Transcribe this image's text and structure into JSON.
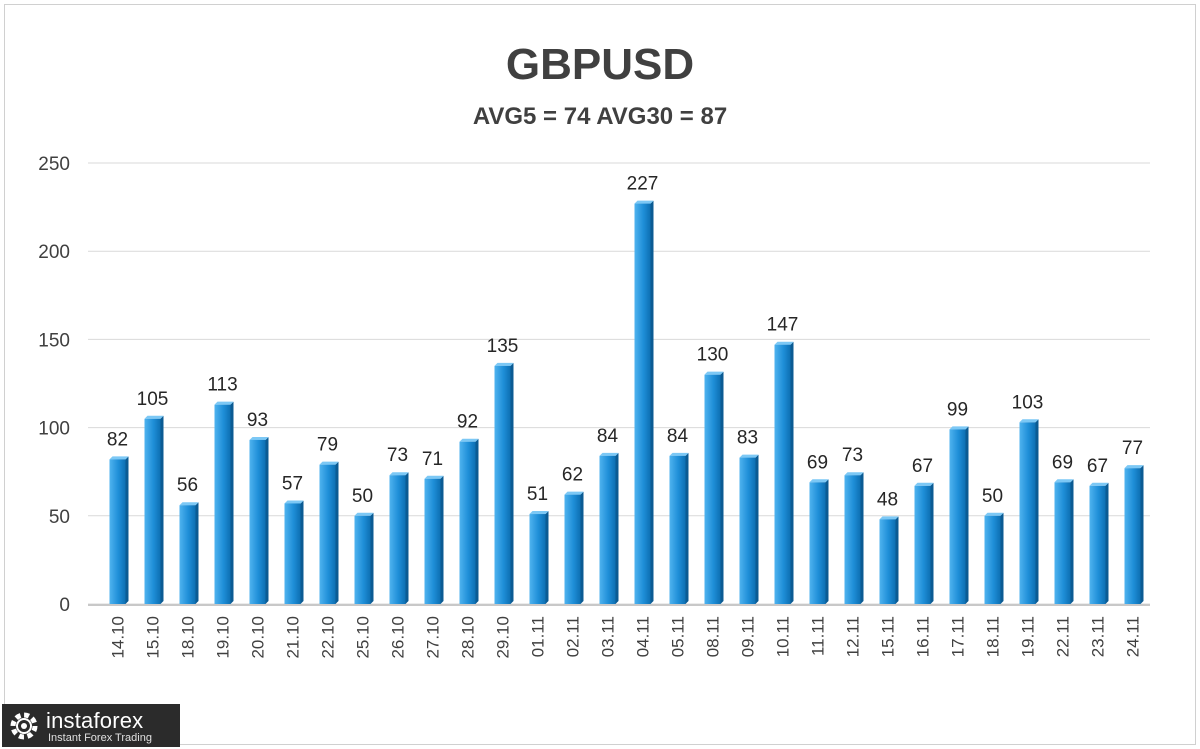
{
  "chart_data": {
    "type": "bar",
    "title": "GBPUSD",
    "subtitle": "AVG5 = 74 AVG30 = 87",
    "categories": [
      "14.10",
      "15.10",
      "18.10",
      "19.10",
      "20.10",
      "21.10",
      "22.10",
      "25.10",
      "26.10",
      "27.10",
      "28.10",
      "29.10",
      "01.11",
      "02.11",
      "03.11",
      "04.11",
      "05.11",
      "08.11",
      "09.11",
      "10.11",
      "11.11",
      "12.11",
      "15.11",
      "16.11",
      "17.11",
      "18.11",
      "19.11",
      "22.11",
      "23.11",
      "24.11"
    ],
    "values": [
      82,
      105,
      56,
      113,
      93,
      57,
      79,
      50,
      73,
      71,
      92,
      135,
      51,
      62,
      84,
      227,
      84,
      130,
      83,
      147,
      69,
      73,
      48,
      67,
      99,
      50,
      103,
      69,
      67,
      77
    ],
    "yticks": [
      "0",
      "50",
      "100",
      "150",
      "200",
      "250"
    ],
    "ylim": [
      0,
      250
    ],
    "grid": true,
    "bar_color": "#1f8fd8"
  },
  "logo": {
    "name": "instaforex",
    "tagline": "Instant Forex Trading"
  }
}
